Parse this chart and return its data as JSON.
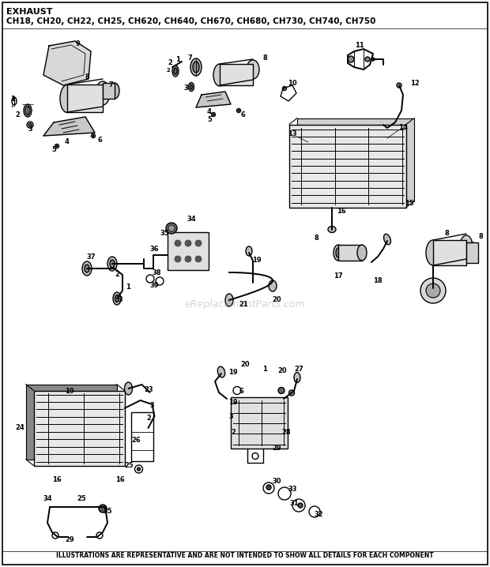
{
  "title_line1": "EXHAUST",
  "title_line2": "CH18, CH20, CH22, CH25, CH620, CH640, CH670, CH680, CH730, CH740, CH750",
  "footer": "ILLUSTRATIONS ARE REPRESENTATIVE AND ARE NOT INTENDED TO SHOW ALL DETAILS FOR EACH COMPONENT",
  "watermark": "eReplacementParts.com",
  "bg": "#ffffff",
  "fg": "#000000",
  "fig_width": 6.2,
  "fig_height": 7.18,
  "dpi": 100
}
